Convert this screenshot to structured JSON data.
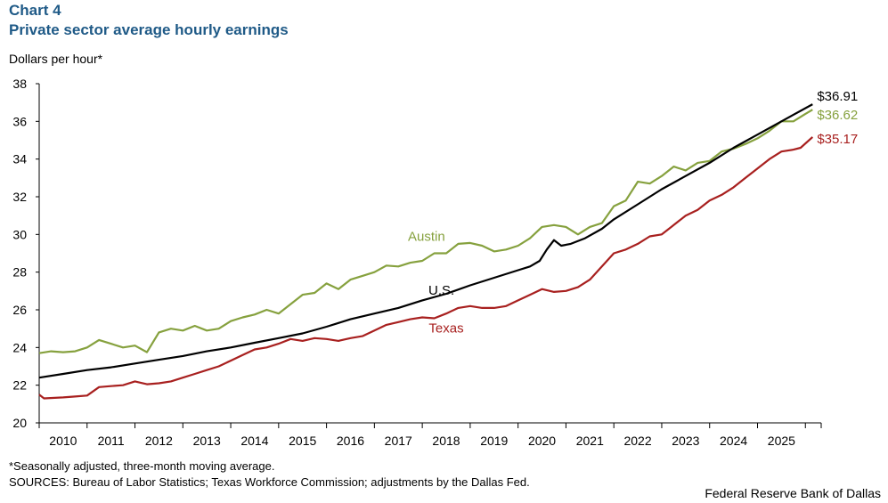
{
  "header": {
    "chart_number": "Chart 4",
    "title": "Private sector average hourly earnings"
  },
  "footer": {
    "note": "*Seasonally adjusted, three-month moving average.",
    "sources": "SOURCES: Bureau of Labor Statistics; Texas Workforce Commission; adjustments by the Dallas Fed.",
    "brand": "Federal Reserve Bank of Dallas"
  },
  "colors": {
    "austin": "#86a13e",
    "us": "#000000",
    "texas": "#a8201f",
    "axis": "#000000"
  },
  "chart_data": {
    "type": "line",
    "title": "Private sector average hourly earnings",
    "ylabel": "Dollars per hour*",
    "xlabel": "",
    "ylim": [
      20,
      38
    ],
    "yticks": [
      20,
      22,
      24,
      26,
      28,
      30,
      32,
      34,
      36,
      38
    ],
    "xlim": [
      2009.5,
      2025.83
    ],
    "xtick_labels": [
      "2010",
      "2011",
      "2012",
      "2013",
      "2014",
      "2015",
      "2016",
      "2017",
      "2018",
      "2019",
      "2020",
      "2021",
      "2022",
      "2023",
      "2024",
      "2025"
    ],
    "grid": false,
    "series": [
      {
        "name": "Austin",
        "key": "austin",
        "label": "Austin",
        "end_label": "$36.62",
        "points": [
          [
            2009.5,
            23.7
          ],
          [
            2009.75,
            23.8
          ],
          [
            2010.0,
            23.75
          ],
          [
            2010.25,
            23.8
          ],
          [
            2010.5,
            24.0
          ],
          [
            2010.75,
            24.4
          ],
          [
            2011.0,
            24.2
          ],
          [
            2011.25,
            24.0
          ],
          [
            2011.5,
            24.1
          ],
          [
            2011.75,
            23.75
          ],
          [
            2012.0,
            24.8
          ],
          [
            2012.25,
            25.0
          ],
          [
            2012.5,
            24.9
          ],
          [
            2012.75,
            25.15
          ],
          [
            2013.0,
            24.9
          ],
          [
            2013.25,
            25.0
          ],
          [
            2013.5,
            25.4
          ],
          [
            2013.75,
            25.6
          ],
          [
            2014.0,
            25.75
          ],
          [
            2014.25,
            26.0
          ],
          [
            2014.5,
            25.8
          ],
          [
            2014.75,
            26.3
          ],
          [
            2015.0,
            26.8
          ],
          [
            2015.25,
            26.9
          ],
          [
            2015.5,
            27.4
          ],
          [
            2015.75,
            27.1
          ],
          [
            2016.0,
            27.6
          ],
          [
            2016.25,
            27.8
          ],
          [
            2016.5,
            28.0
          ],
          [
            2016.75,
            28.35
          ],
          [
            2017.0,
            28.3
          ],
          [
            2017.25,
            28.5
          ],
          [
            2017.5,
            28.6
          ],
          [
            2017.75,
            29.0
          ],
          [
            2018.0,
            29.0
          ],
          [
            2018.25,
            29.5
          ],
          [
            2018.5,
            29.55
          ],
          [
            2018.75,
            29.4
          ],
          [
            2019.0,
            29.1
          ],
          [
            2019.25,
            29.2
          ],
          [
            2019.5,
            29.4
          ],
          [
            2019.75,
            29.8
          ],
          [
            2020.0,
            30.4
          ],
          [
            2020.25,
            30.5
          ],
          [
            2020.5,
            30.4
          ],
          [
            2020.75,
            30.0
          ],
          [
            2021.0,
            30.4
          ],
          [
            2021.25,
            30.6
          ],
          [
            2021.5,
            31.5
          ],
          [
            2021.75,
            31.8
          ],
          [
            2022.0,
            32.8
          ],
          [
            2022.25,
            32.7
          ],
          [
            2022.5,
            33.1
          ],
          [
            2022.75,
            33.6
          ],
          [
            2023.0,
            33.4
          ],
          [
            2023.25,
            33.8
          ],
          [
            2023.5,
            33.9
          ],
          [
            2023.75,
            34.4
          ],
          [
            2024.0,
            34.55
          ],
          [
            2024.25,
            34.8
          ],
          [
            2024.5,
            35.1
          ],
          [
            2024.75,
            35.5
          ],
          [
            2025.0,
            36.0
          ],
          [
            2025.25,
            36.0
          ],
          [
            2025.5,
            36.4
          ],
          [
            2025.65,
            36.62
          ]
        ]
      },
      {
        "name": "U.S.",
        "key": "us",
        "label": "U.S.",
        "end_label": "$36.91",
        "points": [
          [
            2009.5,
            22.4
          ],
          [
            2010.0,
            22.6
          ],
          [
            2010.5,
            22.8
          ],
          [
            2011.0,
            22.95
          ],
          [
            2011.5,
            23.15
          ],
          [
            2012.0,
            23.35
          ],
          [
            2012.5,
            23.55
          ],
          [
            2013.0,
            23.8
          ],
          [
            2013.5,
            24.0
          ],
          [
            2014.0,
            24.25
          ],
          [
            2014.5,
            24.5
          ],
          [
            2015.0,
            24.75
          ],
          [
            2015.5,
            25.1
          ],
          [
            2016.0,
            25.5
          ],
          [
            2016.5,
            25.8
          ],
          [
            2017.0,
            26.1
          ],
          [
            2017.5,
            26.5
          ],
          [
            2018.0,
            26.85
          ],
          [
            2018.5,
            27.3
          ],
          [
            2019.0,
            27.7
          ],
          [
            2019.5,
            28.1
          ],
          [
            2019.75,
            28.3
          ],
          [
            2019.95,
            28.6
          ],
          [
            2020.1,
            29.2
          ],
          [
            2020.25,
            29.7
          ],
          [
            2020.4,
            29.4
          ],
          [
            2020.6,
            29.5
          ],
          [
            2020.9,
            29.8
          ],
          [
            2021.25,
            30.3
          ],
          [
            2021.5,
            30.8
          ],
          [
            2022.0,
            31.6
          ],
          [
            2022.5,
            32.4
          ],
          [
            2023.0,
            33.1
          ],
          [
            2023.5,
            33.8
          ],
          [
            2024.0,
            34.6
          ],
          [
            2024.5,
            35.3
          ],
          [
            2025.0,
            36.0
          ],
          [
            2025.65,
            36.91
          ]
        ]
      },
      {
        "name": "Texas",
        "key": "texas",
        "label": "Texas",
        "end_label": "$35.17",
        "points": [
          [
            2009.5,
            21.5
          ],
          [
            2009.6,
            21.3
          ],
          [
            2010.0,
            21.35
          ],
          [
            2010.25,
            21.4
          ],
          [
            2010.5,
            21.45
          ],
          [
            2010.75,
            21.9
          ],
          [
            2011.0,
            21.95
          ],
          [
            2011.25,
            22.0
          ],
          [
            2011.5,
            22.2
          ],
          [
            2011.75,
            22.05
          ],
          [
            2012.0,
            22.1
          ],
          [
            2012.25,
            22.2
          ],
          [
            2012.5,
            22.4
          ],
          [
            2012.75,
            22.6
          ],
          [
            2013.0,
            22.8
          ],
          [
            2013.25,
            23.0
          ],
          [
            2013.5,
            23.3
          ],
          [
            2013.75,
            23.6
          ],
          [
            2014.0,
            23.9
          ],
          [
            2014.25,
            24.0
          ],
          [
            2014.5,
            24.2
          ],
          [
            2014.75,
            24.45
          ],
          [
            2015.0,
            24.35
          ],
          [
            2015.25,
            24.5
          ],
          [
            2015.5,
            24.45
          ],
          [
            2015.75,
            24.35
          ],
          [
            2016.0,
            24.5
          ],
          [
            2016.25,
            24.6
          ],
          [
            2016.5,
            24.9
          ],
          [
            2016.75,
            25.2
          ],
          [
            2017.0,
            25.35
          ],
          [
            2017.25,
            25.5
          ],
          [
            2017.5,
            25.6
          ],
          [
            2017.75,
            25.55
          ],
          [
            2018.0,
            25.8
          ],
          [
            2018.25,
            26.1
          ],
          [
            2018.5,
            26.2
          ],
          [
            2018.75,
            26.1
          ],
          [
            2019.0,
            26.1
          ],
          [
            2019.25,
            26.2
          ],
          [
            2019.5,
            26.5
          ],
          [
            2019.75,
            26.8
          ],
          [
            2020.0,
            27.1
          ],
          [
            2020.25,
            26.95
          ],
          [
            2020.5,
            27.0
          ],
          [
            2020.75,
            27.2
          ],
          [
            2021.0,
            27.6
          ],
          [
            2021.25,
            28.3
          ],
          [
            2021.5,
            29.0
          ],
          [
            2021.75,
            29.2
          ],
          [
            2022.0,
            29.5
          ],
          [
            2022.25,
            29.9
          ],
          [
            2022.5,
            30.0
          ],
          [
            2022.75,
            30.5
          ],
          [
            2023.0,
            31.0
          ],
          [
            2023.25,
            31.3
          ],
          [
            2023.5,
            31.8
          ],
          [
            2023.75,
            32.1
          ],
          [
            2024.0,
            32.5
          ],
          [
            2024.25,
            33.0
          ],
          [
            2024.5,
            33.5
          ],
          [
            2024.75,
            34.0
          ],
          [
            2025.0,
            34.4
          ],
          [
            2025.25,
            34.5
          ],
          [
            2025.4,
            34.6
          ],
          [
            2025.65,
            35.17
          ]
        ]
      }
    ]
  }
}
